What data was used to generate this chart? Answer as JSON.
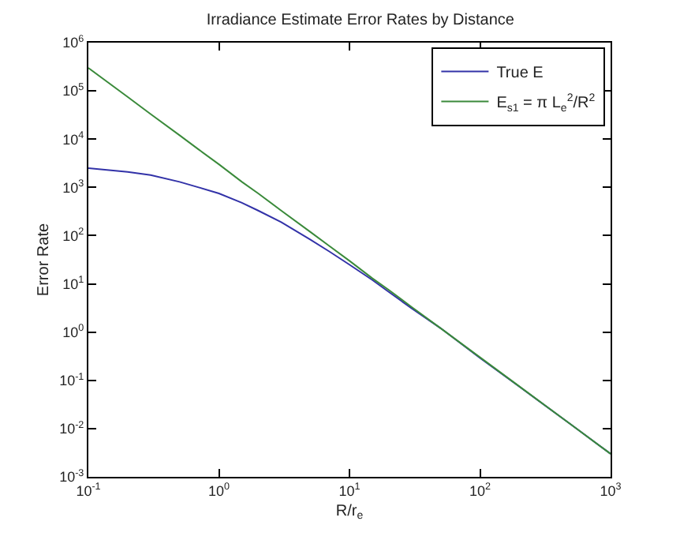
{
  "chart_data": {
    "type": "line",
    "title": "Irradiance Estimate Error Rates by Distance",
    "xlabel": "R/r$_{e}$",
    "ylabel": "Error Rate",
    "log": "xy",
    "grid": false,
    "legend": "top right",
    "marker": "none",
    "line_style": "solid",
    "xlim": [
      0.1,
      1000
    ],
    "ylim": [
      0.001,
      1000000
    ],
    "xticks": [
      {
        "value": 0.1,
        "label": "10$^{-1}$"
      },
      {
        "value": 1,
        "label": "10$^{0}$"
      },
      {
        "value": 10,
        "label": "10$^{1}$"
      },
      {
        "value": 100,
        "label": "10$^{2}$"
      },
      {
        "value": 1000,
        "label": "10$^{3}$"
      }
    ],
    "yticks": [
      {
        "value": 0.001,
        "label": "10$^{-3}$"
      },
      {
        "value": 0.01,
        "label": "10$^{-2}$"
      },
      {
        "value": 0.1,
        "label": "10$^{-1}$"
      },
      {
        "value": 1,
        "label": "10$^{0}$"
      },
      {
        "value": 10,
        "label": "10$^{1}$"
      },
      {
        "value": 100,
        "label": "10$^{2}$"
      },
      {
        "value": 1000,
        "label": "10$^{3}$"
      },
      {
        "value": 10000,
        "label": "10$^{4}$"
      },
      {
        "value": 100000,
        "label": "10$^{5}$"
      },
      {
        "value": 1000000,
        "label": "10$^{6}$"
      }
    ],
    "x": [
      0.1,
      0.2,
      0.3,
      0.5,
      0.7,
      1,
      1.5,
      2,
      3,
      5,
      7,
      10,
      15,
      20,
      30,
      50,
      100,
      200,
      500,
      1000
    ],
    "series": [
      {
        "name": "True E",
        "color": "#3232a8",
        "values": [
          2500,
          2100,
          1800,
          1300,
          1000,
          750,
          480,
          330,
          190,
          83,
          47,
          25,
          12,
          6.8,
          3.1,
          1.2,
          0.29,
          0.074,
          0.012,
          0.003
        ]
      },
      {
        "name": "E$_{s1}$ = π L$_{e}$$^{2}$/R$^{2}$",
        "color": "#3a8a3a",
        "values": [
          300000,
          75000,
          33000,
          12000,
          6100,
          3000,
          1300,
          750,
          330,
          120,
          61,
          30,
          13,
          7.5,
          3.3,
          1.2,
          0.3,
          0.075,
          0.012,
          0.003
        ]
      }
    ]
  }
}
